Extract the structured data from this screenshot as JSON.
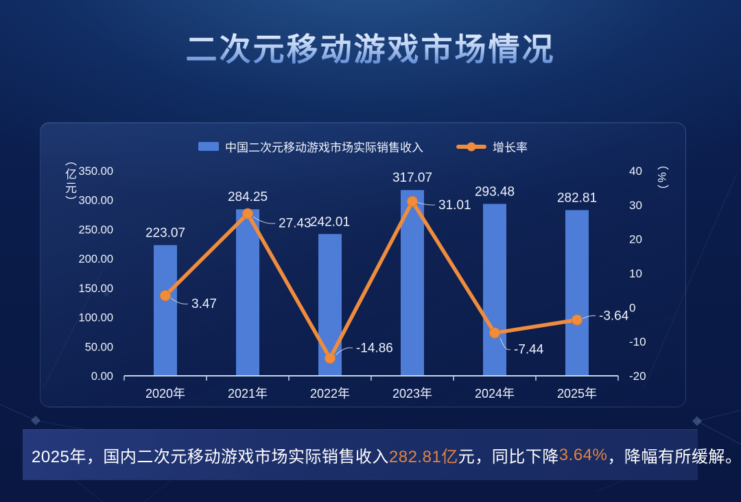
{
  "page": {
    "title": "二次元移动游戏市场情况"
  },
  "colors": {
    "bar": "#4d7dd6",
    "line": "#ef8c3e",
    "emphasis_text": "#e08440",
    "axis": "#c9d3e6",
    "label_text": "#eef3fc"
  },
  "legend": [
    {
      "label": "中国二次元移动游戏市场实际销售收入",
      "type": "bar"
    },
    {
      "label": "增长率",
      "type": "line"
    }
  ],
  "chart_data": {
    "type": "bar+line",
    "categories": [
      "2020年",
      "2021年",
      "2022年",
      "2023年",
      "2024年",
      "2025年"
    ],
    "series": [
      {
        "name": "中国二次元移动游戏市场实际销售收入",
        "type": "bar",
        "axis": "left",
        "unit": "亿元",
        "values": [
          223.07,
          284.25,
          242.01,
          317.07,
          293.48,
          282.81
        ]
      },
      {
        "name": "增长率",
        "type": "line",
        "axis": "right",
        "unit": "%",
        "values": [
          3.47,
          27.43,
          -14.86,
          31.01,
          -7.44,
          -3.64
        ]
      }
    ],
    "left_axis": {
      "unit": "（亿元）",
      "min": 0,
      "max": 350,
      "ticks": [
        "350.00",
        "300.00",
        "250.00",
        "200.00",
        "150.00",
        "100.00",
        "50.00",
        "0.00"
      ]
    },
    "right_axis": {
      "unit": "（%）",
      "min": -20,
      "max": 40,
      "ticks": [
        "40",
        "30",
        "20",
        "10",
        "0",
        "-10",
        "-20"
      ]
    },
    "grid": false,
    "legend_position": "top-center",
    "data_labels": true
  },
  "footer": {
    "segments": [
      {
        "text": "2025年，国内二次元移动游戏市场实际销售收入",
        "emphasis": false
      },
      {
        "text": "282.81亿",
        "emphasis": true
      },
      {
        "text": "元，同比下降",
        "emphasis": false
      },
      {
        "text": "3.64%",
        "emphasis": true
      },
      {
        "text": "，降幅有所缓解。",
        "emphasis": false
      }
    ]
  }
}
